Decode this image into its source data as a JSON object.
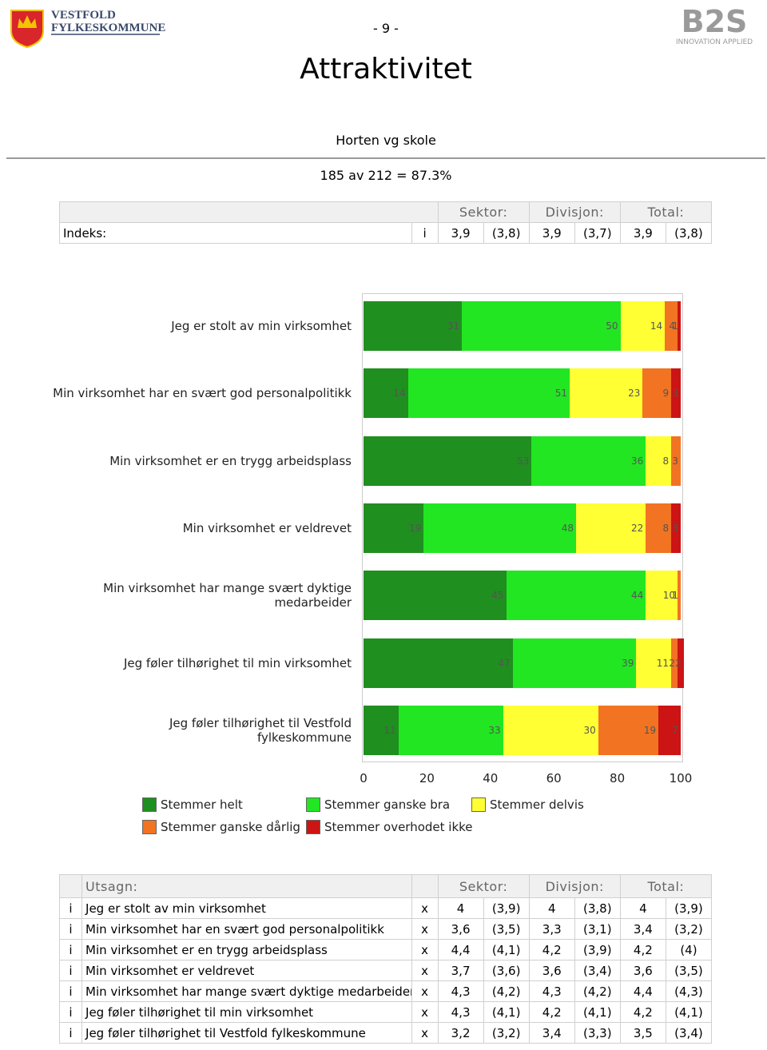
{
  "header": {
    "logo_line1": "VESTFOLD",
    "logo_line2": "FYLKESKOMMUNE",
    "page_number": "- 9 -",
    "brand": "B2S",
    "brand_tagline": "INNOVATION APPLIED"
  },
  "title": "Attraktivitet",
  "subtitle": "Horten vg skole",
  "response": "185 av 212 = 87.3%",
  "index_table": {
    "headers": [
      "Sektor:",
      "Divisjon:",
      "Total:"
    ],
    "label": "Indeks:",
    "info": "i",
    "cells": [
      [
        "3,9",
        "(3,8)"
      ],
      [
        "3,9",
        "(3,7)"
      ],
      [
        "3,9",
        "(3,8)"
      ]
    ]
  },
  "chart_data": {
    "type": "stacked-bar-horizontal",
    "categories": [
      "Jeg er stolt av min virksomhet",
      "Min virksomhet har en svært god personalpolitikk",
      "Min virksomhet er en trygg arbeidsplass",
      "Min virksomhet er veldrevet",
      "Min virksomhet har mange svært dyktige\nmedarbeider",
      "Jeg føler tilhørighet til min virksomhet",
      "Jeg føler tilhørighet til Vestfold\nfylkeskommune"
    ],
    "series": [
      {
        "name": "Stemmer helt",
        "color": "#1f8f1f",
        "values": [
          31,
          14,
          53,
          19,
          45,
          47,
          11
        ]
      },
      {
        "name": "Stemmer ganske bra",
        "color": "#22e622",
        "values": [
          50,
          51,
          36,
          48,
          44,
          39,
          33
        ]
      },
      {
        "name": "Stemmer delvis",
        "color": "#ffff33",
        "values": [
          14,
          23,
          8,
          22,
          10,
          11,
          30
        ]
      },
      {
        "name": "Stemmer ganske dårlig",
        "color": "#f27322",
        "values": [
          4,
          9,
          3,
          8,
          1,
          2,
          19
        ]
      },
      {
        "name": "Stemmer overhodet ikke",
        "color": "#cc1414",
        "values": [
          1,
          3,
          0,
          3,
          0,
          2,
          7
        ]
      }
    ],
    "xlim": [
      0,
      100
    ],
    "xticks": [
      0,
      20,
      40,
      60,
      80,
      100
    ]
  },
  "statement_table": {
    "headers": [
      "Utsagn:",
      "Sektor:",
      "Divisjon:",
      "Total:"
    ],
    "rows": [
      {
        "info": "i",
        "text": "Jeg er stolt av min virksomhet",
        "flag": "x",
        "values": [
          [
            "4",
            "(3,9)"
          ],
          [
            "4",
            "(3,8)"
          ],
          [
            "4",
            "(3,9)"
          ]
        ]
      },
      {
        "info": "i",
        "text": "Min virksomhet har en svært god personalpolitikk",
        "flag": "x",
        "values": [
          [
            "3,6",
            "(3,5)"
          ],
          [
            "3,3",
            "(3,1)"
          ],
          [
            "3,4",
            "(3,2)"
          ]
        ]
      },
      {
        "info": "i",
        "text": "Min virksomhet er en trygg arbeidsplass",
        "flag": "x",
        "values": [
          [
            "4,4",
            "(4,1)"
          ],
          [
            "4,2",
            "(3,9)"
          ],
          [
            "4,2",
            "(4)"
          ]
        ]
      },
      {
        "info": "i",
        "text": "Min virksomhet er veldrevet",
        "flag": "x",
        "values": [
          [
            "3,7",
            "(3,6)"
          ],
          [
            "3,6",
            "(3,4)"
          ],
          [
            "3,6",
            "(3,5)"
          ]
        ]
      },
      {
        "info": "i",
        "text": "Min virksomhet har mange svært dyktige medarbeider",
        "flag": "x",
        "values": [
          [
            "4,3",
            "(4,2)"
          ],
          [
            "4,3",
            "(4,2)"
          ],
          [
            "4,4",
            "(4,3)"
          ]
        ]
      },
      {
        "info": "i",
        "text": "Jeg føler tilhørighet til min virksomhet",
        "flag": "x",
        "values": [
          [
            "4,3",
            "(4,1)"
          ],
          [
            "4,2",
            "(4,1)"
          ],
          [
            "4,2",
            "(4,1)"
          ]
        ]
      },
      {
        "info": "i",
        "text": "Jeg føler tilhørighet til Vestfold fylkeskommune",
        "flag": "x",
        "values": [
          [
            "3,2",
            "(3,2)"
          ],
          [
            "3,4",
            "(3,3)"
          ],
          [
            "3,5",
            "(3,4)"
          ]
        ]
      }
    ]
  }
}
